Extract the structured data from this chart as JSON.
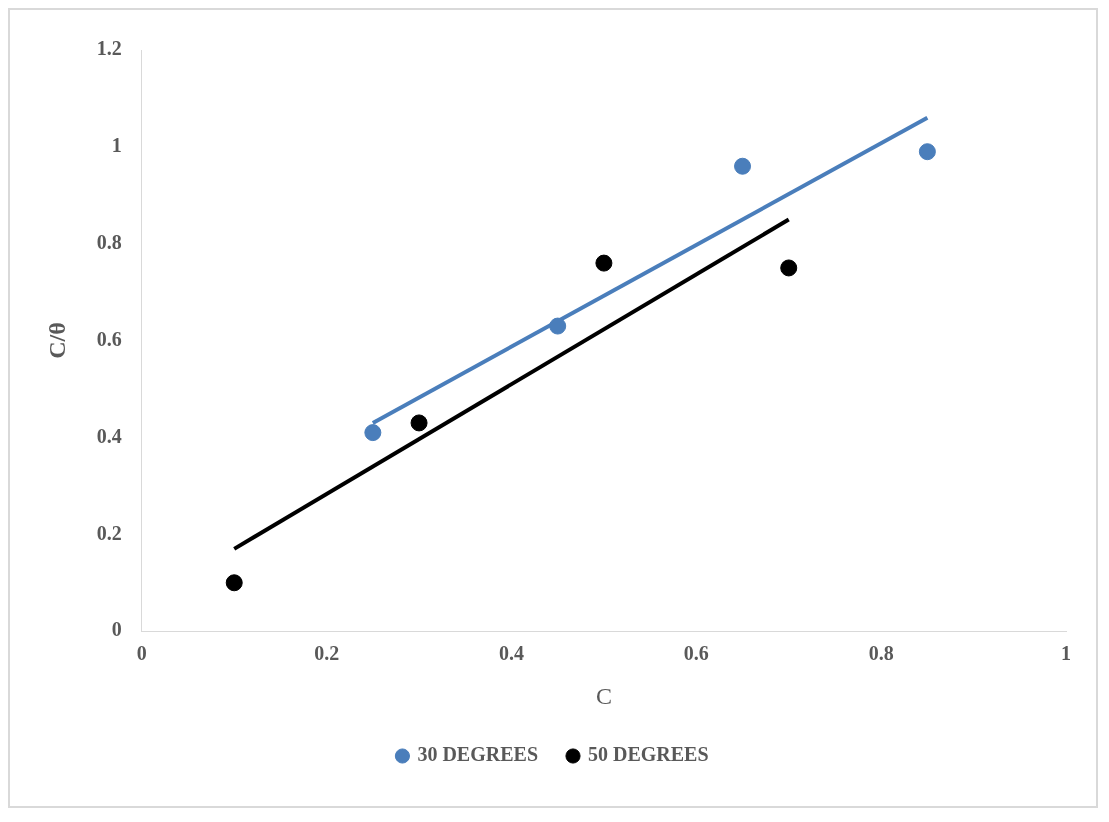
{
  "chart_data": {
    "type": "scatter",
    "xlabel": "C",
    "ylabel": "C/θ",
    "xlim": [
      0,
      1
    ],
    "ylim": [
      0,
      1.2
    ],
    "xticks": [
      0,
      0.2,
      0.4,
      0.6,
      0.8,
      1
    ],
    "yticks": [
      0,
      0.2,
      0.4,
      0.6,
      0.8,
      1,
      1.2
    ],
    "grid": false,
    "legend": "bottom",
    "series": [
      {
        "name": "30 DEGREES",
        "color": "#4a7ebb",
        "x": [
          0.25,
          0.45,
          0.65,
          0.85
        ],
        "values": [
          0.41,
          0.63,
          0.96,
          0.99
        ],
        "marker": "circle"
      },
      {
        "name": "50 DEGREES",
        "color": "#000000",
        "x": [
          0.1,
          0.3,
          0.5,
          0.7
        ],
        "values": [
          0.1,
          0.43,
          0.76,
          0.75
        ],
        "marker": "circle"
      },
      {
        "type": "line",
        "color": "#4a7ebb",
        "x": [
          0.25,
          0.85
        ],
        "values": [
          0.43,
          1.06
        ],
        "marker": "none"
      },
      {
        "type": "line",
        "color": "#000000",
        "x": [
          0.1,
          0.7
        ],
        "values": [
          0.17,
          0.85
        ],
        "marker": "none"
      }
    ]
  }
}
